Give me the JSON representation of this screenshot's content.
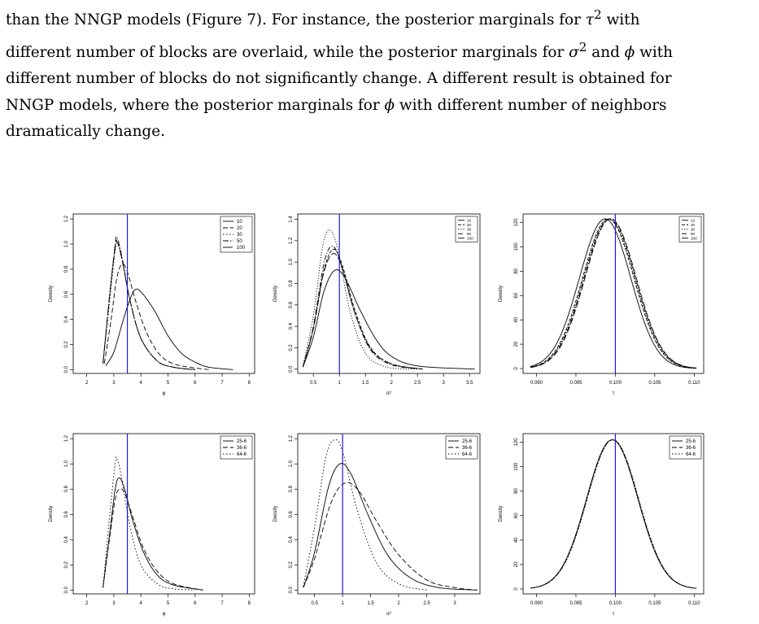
{
  "text": {
    "line1a": "than the NNGP models (Figure 7).  For instance, the posterior marginals for ",
    "line1_sym": "τ",
    "line1_sup": "2",
    "line1b": " with",
    "line2a": "different number of blocks are overlaid, while the posterior marginals for ",
    "line2_sym1": "σ",
    "line2_sup": "2",
    "line2b": " and ",
    "line2_sym2": "ϕ",
    "line2c": " with",
    "line3": "different number of blocks do not significantly change.  A different result is obtained for",
    "line4a": "NNGP models, where the posterior marginals for ",
    "line4_sym": "ϕ",
    "line4b": " with different number of neighbors",
    "line5": "dramatically change."
  },
  "chart_data": [
    {
      "type": "line",
      "ylabel": "Density",
      "xlabel": "φ",
      "xlim": [
        1.5,
        8.2
      ],
      "ylim": [
        -0.03,
        1.24
      ],
      "xticks": [
        2,
        3,
        4,
        5,
        6,
        7,
        8
      ],
      "yticks": [
        0.0,
        0.2,
        0.4,
        0.6,
        0.8,
        1.0,
        1.2
      ],
      "ytick_labels": [
        "0.0",
        "0.2",
        "0.4",
        "0.6",
        "0.8",
        "1.0",
        "1.2"
      ],
      "vline": 3.5,
      "legend": [
        "10",
        "20",
        "30",
        "50",
        "100"
      ],
      "legend_size": "large",
      "series": [
        {
          "name": "10",
          "dash": "",
          "points": [
            [
              2.7,
              0.03
            ],
            [
              3.0,
              0.14
            ],
            [
              3.3,
              0.36
            ],
            [
              3.5,
              0.5
            ],
            [
              3.75,
              0.63
            ],
            [
              4.0,
              0.62
            ],
            [
              4.5,
              0.47
            ],
            [
              5.0,
              0.27
            ],
            [
              5.5,
              0.13
            ],
            [
              6.0,
              0.06
            ],
            [
              6.5,
              0.02
            ],
            [
              7.4,
              0.0
            ]
          ]
        },
        {
          "name": "20",
          "dash": "6,3",
          "points": [
            [
              2.65,
              0.05
            ],
            [
              2.9,
              0.4
            ],
            [
              3.1,
              0.72
            ],
            [
              3.3,
              0.84
            ],
            [
              3.5,
              0.78
            ],
            [
              3.8,
              0.55
            ],
            [
              4.2,
              0.3
            ],
            [
              4.7,
              0.12
            ],
            [
              5.3,
              0.04
            ],
            [
              6.5,
              0.0
            ]
          ]
        },
        {
          "name": "30",
          "dash": "1.5,2.5",
          "points": [
            [
              2.6,
              0.05
            ],
            [
              2.85,
              0.55
            ],
            [
              3.05,
              0.95
            ],
            [
              3.15,
              1.0
            ],
            [
              3.3,
              0.88
            ],
            [
              3.6,
              0.55
            ],
            [
              4.0,
              0.25
            ],
            [
              4.6,
              0.07
            ],
            [
              5.2,
              0.02
            ],
            [
              6.0,
              0.0
            ]
          ]
        },
        {
          "name": "50",
          "dash": "7,2,1.5,2",
          "points": [
            [
              2.6,
              0.05
            ],
            [
              2.85,
              0.6
            ],
            [
              3.05,
              1.0
            ],
            [
              3.12,
              1.05
            ],
            [
              3.3,
              0.9
            ],
            [
              3.6,
              0.55
            ],
            [
              4.0,
              0.25
            ],
            [
              4.6,
              0.07
            ],
            [
              5.2,
              0.02
            ],
            [
              6.0,
              0.0
            ]
          ]
        },
        {
          "name": "100",
          "dash": "12,3",
          "points": [
            [
              2.6,
              0.05
            ],
            [
              2.85,
              0.6
            ],
            [
              3.05,
              0.98
            ],
            [
              3.12,
              1.02
            ],
            [
              3.3,
              0.88
            ],
            [
              3.6,
              0.55
            ],
            [
              4.0,
              0.25
            ],
            [
              4.6,
              0.07
            ],
            [
              5.2,
              0.02
            ],
            [
              6.0,
              0.0
            ]
          ]
        }
      ]
    },
    {
      "type": "line",
      "ylabel": "Density",
      "xlabel": "σ²",
      "xlim": [
        0.2,
        3.7
      ],
      "ylim": [
        -0.04,
        1.45
      ],
      "xticks": [
        0.5,
        1.0,
        1.5,
        2.0,
        2.5,
        3.0,
        3.5
      ],
      "yticks": [
        0.0,
        0.2,
        0.4,
        0.6,
        0.8,
        1.0,
        1.2,
        1.4
      ],
      "ytick_labels": [
        "0.0",
        "0.2",
        "0.4",
        "0.6",
        "0.8",
        "1.0",
        "1.2",
        "1.4"
      ],
      "vline": 1.0,
      "legend": [
        "10",
        "20",
        "30",
        "50",
        "100"
      ],
      "legend_size": "small",
      "series": [
        {
          "name": "10",
          "dash": "",
          "points": [
            [
              0.3,
              0.02
            ],
            [
              0.5,
              0.3
            ],
            [
              0.7,
              0.72
            ],
            [
              0.9,
              0.92
            ],
            [
              1.1,
              0.86
            ],
            [
              1.4,
              0.55
            ],
            [
              1.7,
              0.28
            ],
            [
              2.0,
              0.12
            ],
            [
              2.5,
              0.03
            ],
            [
              3.6,
              0.0
            ]
          ]
        },
        {
          "name": "20",
          "dash": "4,2",
          "points": [
            [
              0.3,
              0.02
            ],
            [
              0.5,
              0.38
            ],
            [
              0.7,
              0.92
            ],
            [
              0.88,
              1.12
            ],
            [
              1.05,
              0.98
            ],
            [
              1.3,
              0.55
            ],
            [
              1.6,
              0.2
            ],
            [
              2.0,
              0.05
            ],
            [
              2.6,
              0.0
            ]
          ]
        },
        {
          "name": "30",
          "dash": "1.2,2",
          "points": [
            [
              0.3,
              0.03
            ],
            [
              0.5,
              0.5
            ],
            [
              0.68,
              1.15
            ],
            [
              0.82,
              1.3
            ],
            [
              0.98,
              1.1
            ],
            [
              1.2,
              0.55
            ],
            [
              1.5,
              0.15
            ],
            [
              1.9,
              0.02
            ],
            [
              2.5,
              0.0
            ]
          ]
        },
        {
          "name": "50",
          "dash": "6,2,1.2,2",
          "points": [
            [
              0.3,
              0.02
            ],
            [
              0.5,
              0.4
            ],
            [
              0.7,
              0.98
            ],
            [
              0.86,
              1.15
            ],
            [
              1.02,
              1.0
            ],
            [
              1.3,
              0.52
            ],
            [
              1.6,
              0.18
            ],
            [
              2.0,
              0.04
            ],
            [
              2.6,
              0.0
            ]
          ]
        },
        {
          "name": "100",
          "dash": "8,3",
          "points": [
            [
              0.3,
              0.02
            ],
            [
              0.5,
              0.38
            ],
            [
              0.7,
              0.9
            ],
            [
              0.88,
              1.08
            ],
            [
              1.05,
              0.95
            ],
            [
              1.3,
              0.52
            ],
            [
              1.6,
              0.19
            ],
            [
              2.0,
              0.05
            ],
            [
              2.6,
              0.0
            ]
          ]
        }
      ]
    },
    {
      "type": "line",
      "ylabel": "Density",
      "xlabel": "τ",
      "xlim": [
        0.0883,
        0.1112
      ],
      "ylim": [
        -4,
        127
      ],
      "xticks": [
        0.09,
        0.095,
        0.1,
        0.105,
        0.11
      ],
      "yticks": [
        0,
        20,
        40,
        60,
        80,
        100,
        120
      ],
      "xtick_labels": [
        "0.090",
        "0.095",
        "0.100",
        "0.105",
        "0.110"
      ],
      "vline": 0.1,
      "legend": [
        "10",
        "20",
        "30",
        "50",
        "100"
      ],
      "legend_size": "small",
      "gaussians": [
        {
          "name": "10",
          "dash": "",
          "mu": 0.0987,
          "sd": 0.00325,
          "peak": 123
        },
        {
          "name": "20",
          "dash": "4,2",
          "mu": 0.0991,
          "sd": 0.00325,
          "peak": 123
        },
        {
          "name": "30",
          "dash": "1.2,2",
          "mu": 0.0992,
          "sd": 0.00325,
          "peak": 123
        },
        {
          "name": "50",
          "dash": "6,2,1.2,2",
          "mu": 0.0993,
          "sd": 0.00325,
          "peak": 123
        },
        {
          "name": "100",
          "dash": "8,3",
          "mu": 0.0994,
          "sd": 0.00325,
          "peak": 123
        }
      ]
    },
    {
      "type": "line",
      "ylabel": "Density",
      "xlabel": "φ",
      "xlim": [
        1.5,
        8.2
      ],
      "ylim": [
        -0.03,
        1.24
      ],
      "xticks": [
        2,
        3,
        4,
        5,
        6,
        7,
        8
      ],
      "yticks": [
        0.0,
        0.2,
        0.4,
        0.6,
        0.8,
        1.0,
        1.2
      ],
      "ytick_labels": [
        "0.0",
        "0.2",
        "0.4",
        "0.6",
        "0.8",
        "1.0",
        "1.2"
      ],
      "vline": 3.5,
      "legend": [
        "25-6",
        "36-6",
        "64-6"
      ],
      "legend_size": "large",
      "series": [
        {
          "name": "25-6",
          "dash": "",
          "points": [
            [
              2.6,
              0.02
            ],
            [
              2.85,
              0.45
            ],
            [
              3.05,
              0.8
            ],
            [
              3.2,
              0.89
            ],
            [
              3.4,
              0.8
            ],
            [
              3.7,
              0.55
            ],
            [
              4.1,
              0.3
            ],
            [
              4.6,
              0.12
            ],
            [
              5.2,
              0.04
            ],
            [
              6.3,
              0.0
            ]
          ]
        },
        {
          "name": "36-6",
          "dash": "6,3",
          "points": [
            [
              2.6,
              0.02
            ],
            [
              2.85,
              0.42
            ],
            [
              3.05,
              0.72
            ],
            [
              3.2,
              0.8
            ],
            [
              3.4,
              0.77
            ],
            [
              3.7,
              0.58
            ],
            [
              4.1,
              0.33
            ],
            [
              4.6,
              0.15
            ],
            [
              5.2,
              0.05
            ],
            [
              6.3,
              0.0
            ]
          ]
        },
        {
          "name": "64-6",
          "dash": "1.5,2.5",
          "points": [
            [
              2.6,
              0.02
            ],
            [
              2.85,
              0.6
            ],
            [
              3.05,
              1.0
            ],
            [
              3.12,
              1.04
            ],
            [
              3.3,
              0.88
            ],
            [
              3.6,
              0.5
            ],
            [
              4.0,
              0.2
            ],
            [
              4.6,
              0.05
            ],
            [
              5.2,
              0.01
            ],
            [
              6.0,
              0.0
            ]
          ]
        }
      ]
    },
    {
      "type": "line",
      "ylabel": "Density",
      "xlabel": "σ²",
      "xlim": [
        0.2,
        3.45
      ],
      "ylim": [
        -0.03,
        1.24
      ],
      "xticks": [
        0.5,
        1.0,
        1.5,
        2.0,
        2.5,
        3.0
      ],
      "yticks": [
        0.0,
        0.2,
        0.4,
        0.6,
        0.8,
        1.0,
        1.2
      ],
      "ytick_labels": [
        "0.0",
        "0.2",
        "0.4",
        "0.6",
        "0.8",
        "1.0",
        "1.2"
      ],
      "vline": 1.0,
      "legend": [
        "25-6",
        "36-6",
        "64-6"
      ],
      "legend_size": "large",
      "series": [
        {
          "name": "25-6",
          "dash": "",
          "points": [
            [
              0.3,
              0.02
            ],
            [
              0.5,
              0.3
            ],
            [
              0.75,
              0.82
            ],
            [
              0.95,
              1.0
            ],
            [
              1.15,
              0.92
            ],
            [
              1.45,
              0.6
            ],
            [
              1.8,
              0.28
            ],
            [
              2.2,
              0.1
            ],
            [
              2.7,
              0.02
            ],
            [
              3.4,
              0.0
            ]
          ]
        },
        {
          "name": "36-6",
          "dash": "6,3",
          "points": [
            [
              0.3,
              0.02
            ],
            [
              0.5,
              0.25
            ],
            [
              0.8,
              0.7
            ],
            [
              1.05,
              0.85
            ],
            [
              1.3,
              0.78
            ],
            [
              1.6,
              0.55
            ],
            [
              2.0,
              0.28
            ],
            [
              2.5,
              0.08
            ],
            [
              3.0,
              0.02
            ],
            [
              3.4,
              0.0
            ]
          ]
        },
        {
          "name": "64-6",
          "dash": "1.5,2.5",
          "points": [
            [
              0.3,
              0.03
            ],
            [
              0.5,
              0.5
            ],
            [
              0.7,
              1.05
            ],
            [
              0.85,
              1.19
            ],
            [
              1.0,
              1.1
            ],
            [
              1.25,
              0.65
            ],
            [
              1.6,
              0.22
            ],
            [
              2.0,
              0.05
            ],
            [
              2.5,
              0.0
            ]
          ]
        }
      ]
    },
    {
      "type": "line",
      "ylabel": "Density",
      "xlabel": "τ",
      "xlim": [
        0.0883,
        0.1112
      ],
      "ylim": [
        -4,
        127
      ],
      "xticks": [
        0.09,
        0.095,
        0.1,
        0.105,
        0.11
      ],
      "yticks": [
        0,
        20,
        40,
        60,
        80,
        100,
        120
      ],
      "xtick_labels": [
        "0.090",
        "0.095",
        "0.100",
        "0.105",
        "0.110"
      ],
      "vline": 0.1,
      "legend": [
        "25-6",
        "36-6",
        "64-6"
      ],
      "legend_size": "large",
      "gaussians": [
        {
          "name": "25-6",
          "dash": "",
          "mu": 0.0996,
          "sd": 0.00325,
          "peak": 122
        },
        {
          "name": "36-6",
          "dash": "6,3",
          "mu": 0.09965,
          "sd": 0.00325,
          "peak": 122
        },
        {
          "name": "64-6",
          "dash": "1.5,2.5",
          "mu": 0.0997,
          "sd": 0.00325,
          "peak": 122
        }
      ]
    }
  ]
}
